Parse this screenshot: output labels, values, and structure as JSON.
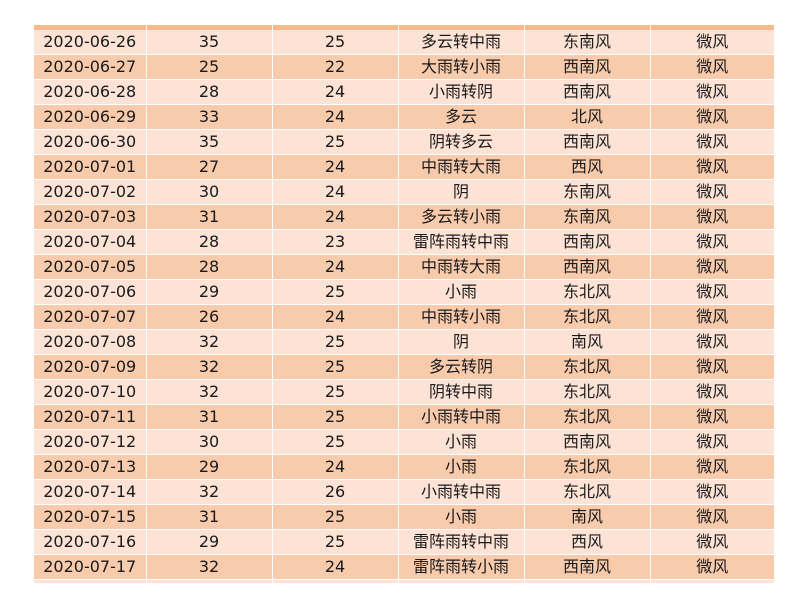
{
  "rows": [
    {
      "date": "2020-06-26",
      "high": "35",
      "low": "25",
      "weather": "多云转中雨",
      "wind_dir": "东南风",
      "wind_force": "微风"
    },
    {
      "date": "2020-06-27",
      "high": "25",
      "low": "22",
      "weather": "大雨转小雨",
      "wind_dir": "西南风",
      "wind_force": "微风"
    },
    {
      "date": "2020-06-28",
      "high": "28",
      "low": "24",
      "weather": "小雨转阴",
      "wind_dir": "西南风",
      "wind_force": "微风"
    },
    {
      "date": "2020-06-29",
      "high": "33",
      "low": "24",
      "weather": "多云",
      "wind_dir": "北风",
      "wind_force": "微风"
    },
    {
      "date": "2020-06-30",
      "high": "35",
      "low": "25",
      "weather": "阴转多云",
      "wind_dir": "西南风",
      "wind_force": "微风"
    },
    {
      "date": "2020-07-01",
      "high": "27",
      "low": "24",
      "weather": "中雨转大雨",
      "wind_dir": "西风",
      "wind_force": "微风"
    },
    {
      "date": "2020-07-02",
      "high": "30",
      "low": "24",
      "weather": "阴",
      "wind_dir": "东南风",
      "wind_force": "微风"
    },
    {
      "date": "2020-07-03",
      "high": "31",
      "low": "24",
      "weather": "多云转小雨",
      "wind_dir": "东南风",
      "wind_force": "微风"
    },
    {
      "date": "2020-07-04",
      "high": "28",
      "low": "23",
      "weather": "雷阵雨转中雨",
      "wind_dir": "西南风",
      "wind_force": "微风"
    },
    {
      "date": "2020-07-05",
      "high": "28",
      "low": "24",
      "weather": "中雨转大雨",
      "wind_dir": "西南风",
      "wind_force": "微风"
    },
    {
      "date": "2020-07-06",
      "high": "29",
      "low": "25",
      "weather": "小雨",
      "wind_dir": "东北风",
      "wind_force": "微风"
    },
    {
      "date": "2020-07-07",
      "high": "26",
      "low": "24",
      "weather": "中雨转小雨",
      "wind_dir": "东北风",
      "wind_force": "微风"
    },
    {
      "date": "2020-07-08",
      "high": "32",
      "low": "25",
      "weather": "阴",
      "wind_dir": "南风",
      "wind_force": "微风"
    },
    {
      "date": "2020-07-09",
      "high": "32",
      "low": "25",
      "weather": "多云转阴",
      "wind_dir": "东北风",
      "wind_force": "微风"
    },
    {
      "date": "2020-07-10",
      "high": "32",
      "low": "25",
      "weather": "阴转中雨",
      "wind_dir": "东北风",
      "wind_force": "微风"
    },
    {
      "date": "2020-07-11",
      "high": "31",
      "low": "25",
      "weather": "小雨转中雨",
      "wind_dir": "东北风",
      "wind_force": "微风"
    },
    {
      "date": "2020-07-12",
      "high": "30",
      "low": "25",
      "weather": "小雨",
      "wind_dir": "西南风",
      "wind_force": "微风"
    },
    {
      "date": "2020-07-13",
      "high": "29",
      "low": "24",
      "weather": "小雨",
      "wind_dir": "东北风",
      "wind_force": "微风"
    },
    {
      "date": "2020-07-14",
      "high": "32",
      "low": "26",
      "weather": "小雨转中雨",
      "wind_dir": "东北风",
      "wind_force": "微风"
    },
    {
      "date": "2020-07-15",
      "high": "31",
      "low": "25",
      "weather": "小雨",
      "wind_dir": "南风",
      "wind_force": "微风"
    },
    {
      "date": "2020-07-16",
      "high": "29",
      "low": "25",
      "weather": "雷阵雨转中雨",
      "wind_dir": "西风",
      "wind_force": "微风"
    },
    {
      "date": "2020-07-17",
      "high": "32",
      "low": "24",
      "weather": "雷阵雨转小雨",
      "wind_dir": "西南风",
      "wind_force": "微风"
    }
  ],
  "colors": {
    "row_light": "#fde3d5",
    "row_dark": "#f8cbad",
    "header_strip": "#f9b98f",
    "text": "#1a1a1a"
  }
}
